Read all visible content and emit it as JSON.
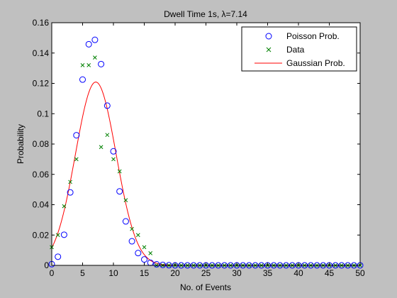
{
  "chart_data": {
    "type": "scatter",
    "title": "Dwell Time 1s, λ=7.14",
    "xlabel": "No. of Events",
    "ylabel": "Probability",
    "xlim": [
      0,
      50
    ],
    "ylim": [
      0,
      0.16
    ],
    "xticks": [
      0,
      5,
      10,
      15,
      20,
      25,
      30,
      35,
      40,
      45,
      50
    ],
    "yticks": [
      0,
      0.02,
      0.04,
      0.06,
      0.08,
      0.1,
      0.12,
      0.14,
      0.16
    ],
    "grid": false,
    "legend_position": "top-right",
    "colors": {
      "figure_bg": "#c0c0c0",
      "axes_bg": "#ffffff",
      "poisson": "#0000ff",
      "data": "#008000",
      "gaussian": "#ff0000"
    },
    "series": [
      {
        "name": "Poisson Prob.",
        "style": "circle",
        "x": [
          0,
          1,
          2,
          3,
          4,
          5,
          6,
          7,
          8,
          9,
          10,
          11,
          12,
          13,
          14,
          15,
          16,
          17,
          18,
          19,
          20,
          21,
          22,
          23,
          24,
          25,
          26,
          27,
          28,
          29,
          30,
          31,
          32,
          33,
          34,
          35,
          36,
          37,
          38,
          39,
          40,
          41,
          42,
          43,
          44,
          45,
          46,
          47,
          48,
          49,
          50
        ],
        "y": [
          0.0008,
          0.0057,
          0.0202,
          0.0481,
          0.0858,
          0.1225,
          0.1458,
          0.1487,
          0.1327,
          0.1053,
          0.0752,
          0.0488,
          0.029,
          0.0159,
          0.0081,
          0.0039,
          0.0017,
          0.0007,
          0.0003,
          0.0001,
          0,
          0,
          0,
          0,
          0,
          0,
          0,
          0,
          0,
          0,
          0,
          0,
          0,
          0,
          0,
          0,
          0,
          0,
          0,
          0,
          0,
          0,
          0,
          0,
          0,
          0,
          0,
          0,
          0,
          0,
          0
        ]
      },
      {
        "name": "Data",
        "style": "x",
        "x": [
          0,
          1,
          2,
          3,
          4,
          5,
          6,
          7,
          8,
          9,
          10,
          11,
          12,
          13,
          14,
          15,
          16,
          17,
          18,
          19,
          20,
          21,
          22,
          23,
          24,
          25,
          26,
          27,
          28,
          29,
          30,
          31,
          32,
          33,
          34,
          35,
          36,
          37,
          38,
          39,
          40,
          41,
          42,
          43,
          44,
          45,
          46,
          47,
          48,
          49,
          50
        ],
        "y": [
          0.012,
          0.02,
          0.039,
          0.055,
          0.07,
          0.132,
          0.132,
          0.137,
          0.078,
          0.086,
          0.07,
          0.062,
          0.043,
          0.024,
          0.02,
          0.012,
          0.008,
          0,
          0,
          0,
          0,
          0,
          0,
          0,
          0,
          0,
          0,
          0,
          0,
          0,
          0,
          0,
          0,
          0,
          0,
          0,
          0,
          0,
          0,
          0,
          0,
          0,
          0,
          0,
          0,
          0,
          0,
          0,
          0,
          0,
          0
        ]
      },
      {
        "name": "Gaussian Prob.",
        "style": "line",
        "mean": 7.14,
        "stdev": 3.3
      }
    ]
  }
}
